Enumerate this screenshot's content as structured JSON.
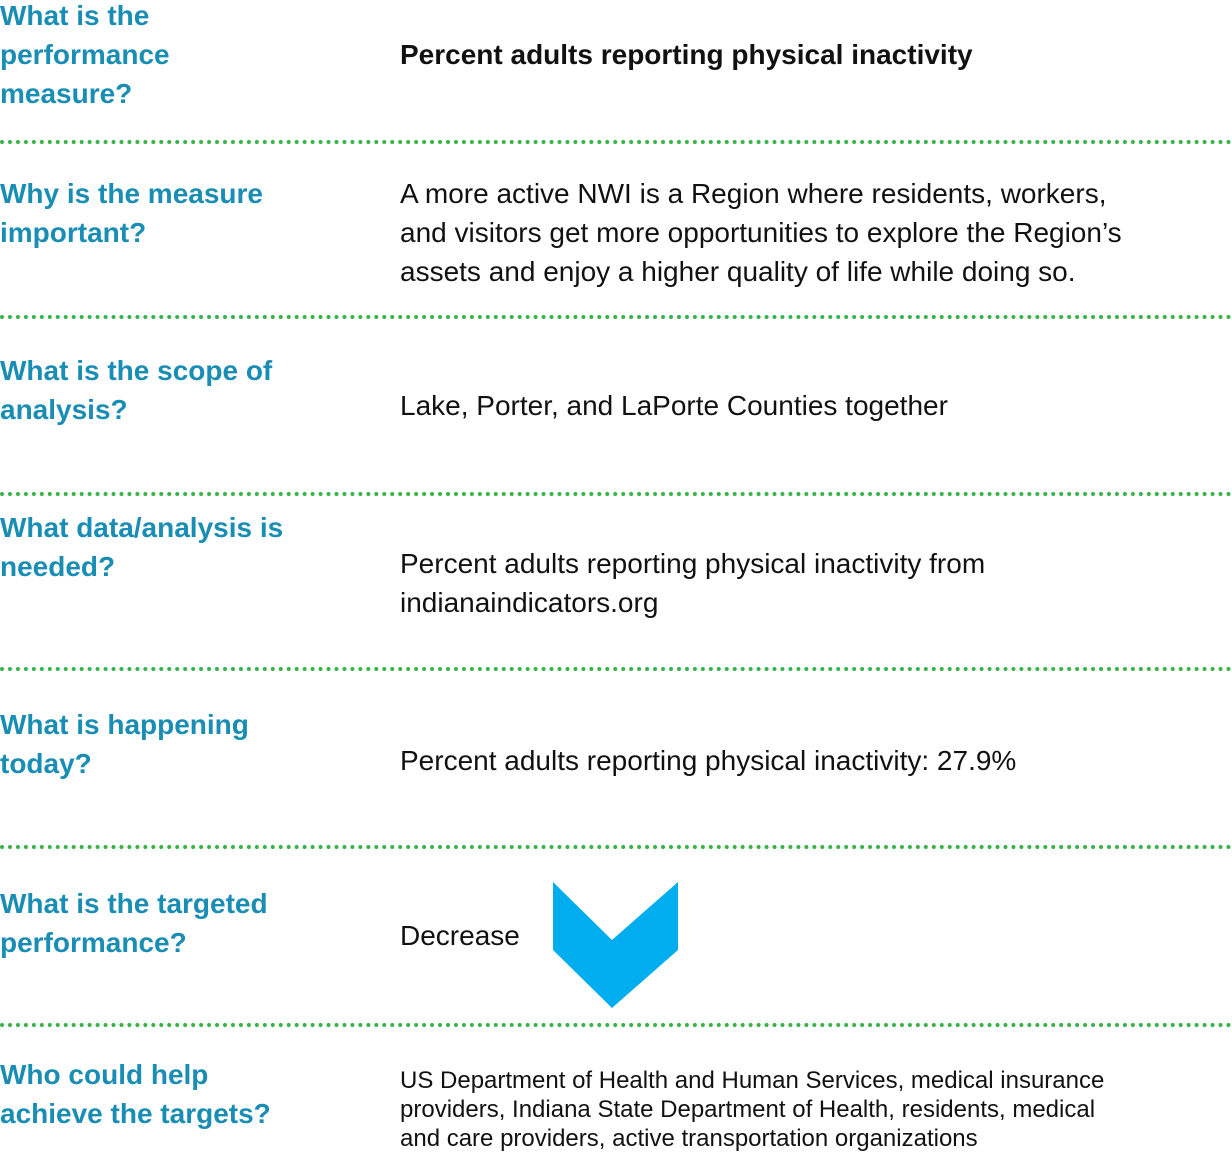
{
  "rows": [
    {
      "question": [
        "What is the",
        "performance",
        "measure?"
      ],
      "answer": [
        "Percent adults reporting physical inactivity"
      ]
    },
    {
      "question": [
        "Why is the measure",
        "important?"
      ],
      "answer": [
        "A more active NWI is a Region where residents, workers,",
        "and visitors get more opportunities to explore the Region’s",
        "assets and enjoy a higher quality of life while doing so."
      ]
    },
    {
      "question": [
        "What is the scope of",
        "analysis?"
      ],
      "answer": [
        "Lake, Porter, and LaPorte Counties together"
      ]
    },
    {
      "question": [
        "What data/analysis is",
        "needed?"
      ],
      "answer": [
        "Percent adults reporting physical inactivity from",
        "indianaindicators.org"
      ]
    },
    {
      "question": [
        "What is happening",
        "today?"
      ],
      "answer": [
        "Percent adults reporting physical inactivity: 27.9%"
      ]
    },
    {
      "question": [
        "What is the targeted",
        "performance?"
      ],
      "answer": [
        "Decrease"
      ]
    },
    {
      "question": [
        "Who could help",
        "achieve the targets?"
      ],
      "answer": [
        "US Department of Health and Human Services, medical insurance",
        "providers, Indiana State Department of Health, residents, medical",
        "and care providers, active transportation organizations"
      ]
    }
  ]
}
